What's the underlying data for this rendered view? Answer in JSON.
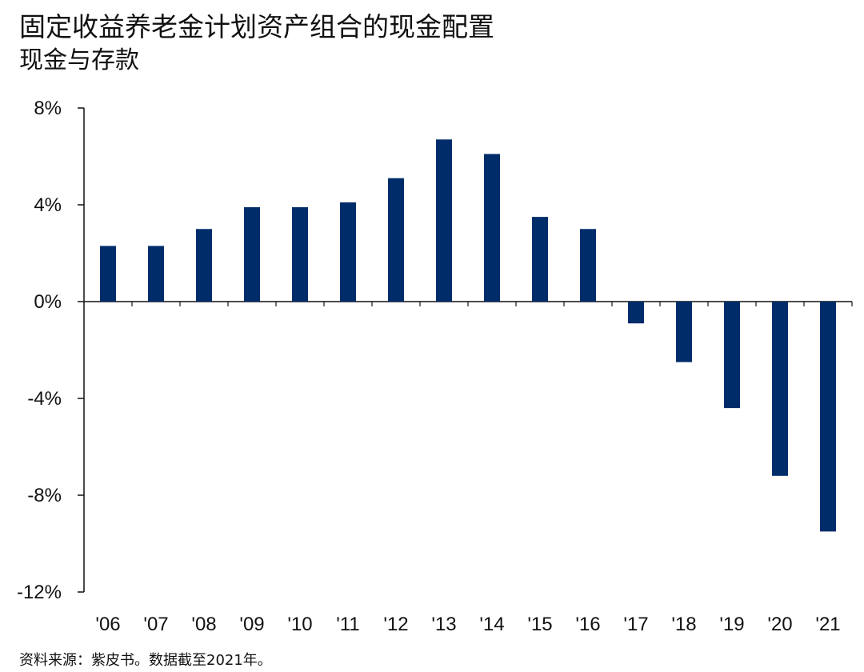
{
  "title": "固定收益养老金计划资产组合的现金配置",
  "subtitle": "现金与存款",
  "source": "资料来源：紫皮书。数据截至2021年。",
  "colors": {
    "bar": "#002D6A",
    "axis": "#111111"
  },
  "chart_data": {
    "type": "bar",
    "title": "固定收益养老金计划资产组合的现金配置",
    "subtitle": "现金与存款",
    "categories": [
      "'06",
      "'07",
      "'08",
      "'09",
      "'10",
      "'11",
      "'12",
      "'13",
      "'14",
      "'15",
      "'16",
      "'17",
      "'18",
      "'19",
      "'20",
      "'21"
    ],
    "values": [
      2.3,
      2.3,
      3.0,
      3.9,
      3.9,
      4.1,
      5.1,
      6.7,
      6.1,
      3.5,
      3.0,
      -0.9,
      -2.5,
      -4.4,
      -7.2,
      -9.5
    ],
    "unit": "%",
    "ylim": [
      -12,
      8
    ],
    "yticks": [
      8,
      4,
      0,
      -4,
      -8,
      -12
    ],
    "ytick_labels": [
      "8%",
      "4%",
      "0%",
      "-4%",
      "-8%",
      "-12%"
    ],
    "xlabel": "",
    "ylabel": "",
    "grid": false,
    "legend": "none"
  }
}
